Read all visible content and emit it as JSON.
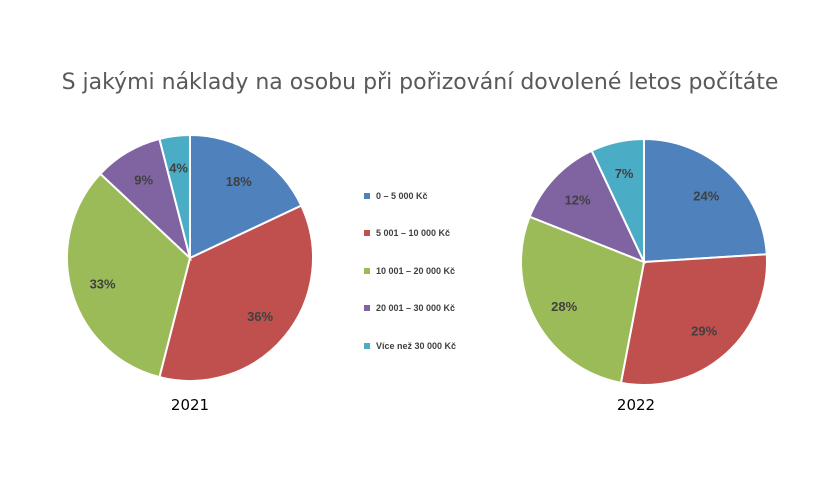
{
  "title": "S jakými náklady na osobu při pořizování dovolené letos počítáte",
  "colors": [
    "#4F81BD",
    "#C0504D",
    "#9BBB59",
    "#8064A2",
    "#4BACC6"
  ],
  "legend": [
    "0 – 5 000 Kč",
    "5 001 – 10 000 Kč",
    "10 001 – 20 000 Kč",
    "20 001 – 30 000 Kč",
    "Více než 30 000 Kč"
  ],
  "chart_data": [
    {
      "type": "pie",
      "title": "2021",
      "categories": [
        "0 – 5 000 Kč",
        "5 001 – 10 000 Kč",
        "10 001 – 20 000 Kč",
        "20 001 – 30 000 Kč",
        "Více než 30 000 Kč"
      ],
      "values": [
        18,
        36,
        33,
        9,
        4
      ],
      "labels": [
        "18%",
        "36%",
        "33%",
        "9%",
        "4%"
      ],
      "legend_position": "center"
    },
    {
      "type": "pie",
      "title": "2022",
      "categories": [
        "0 – 5 000 Kč",
        "5 001 – 10 000 Kč",
        "10 001 – 20 000 Kč",
        "20 001 – 30 000 Kč",
        "Více než 30 000 Kč"
      ],
      "values": [
        24,
        29,
        28,
        12,
        7
      ],
      "labels": [
        "24%",
        "29%",
        "28%",
        "12%",
        "7%"
      ],
      "legend_position": "center"
    }
  ]
}
